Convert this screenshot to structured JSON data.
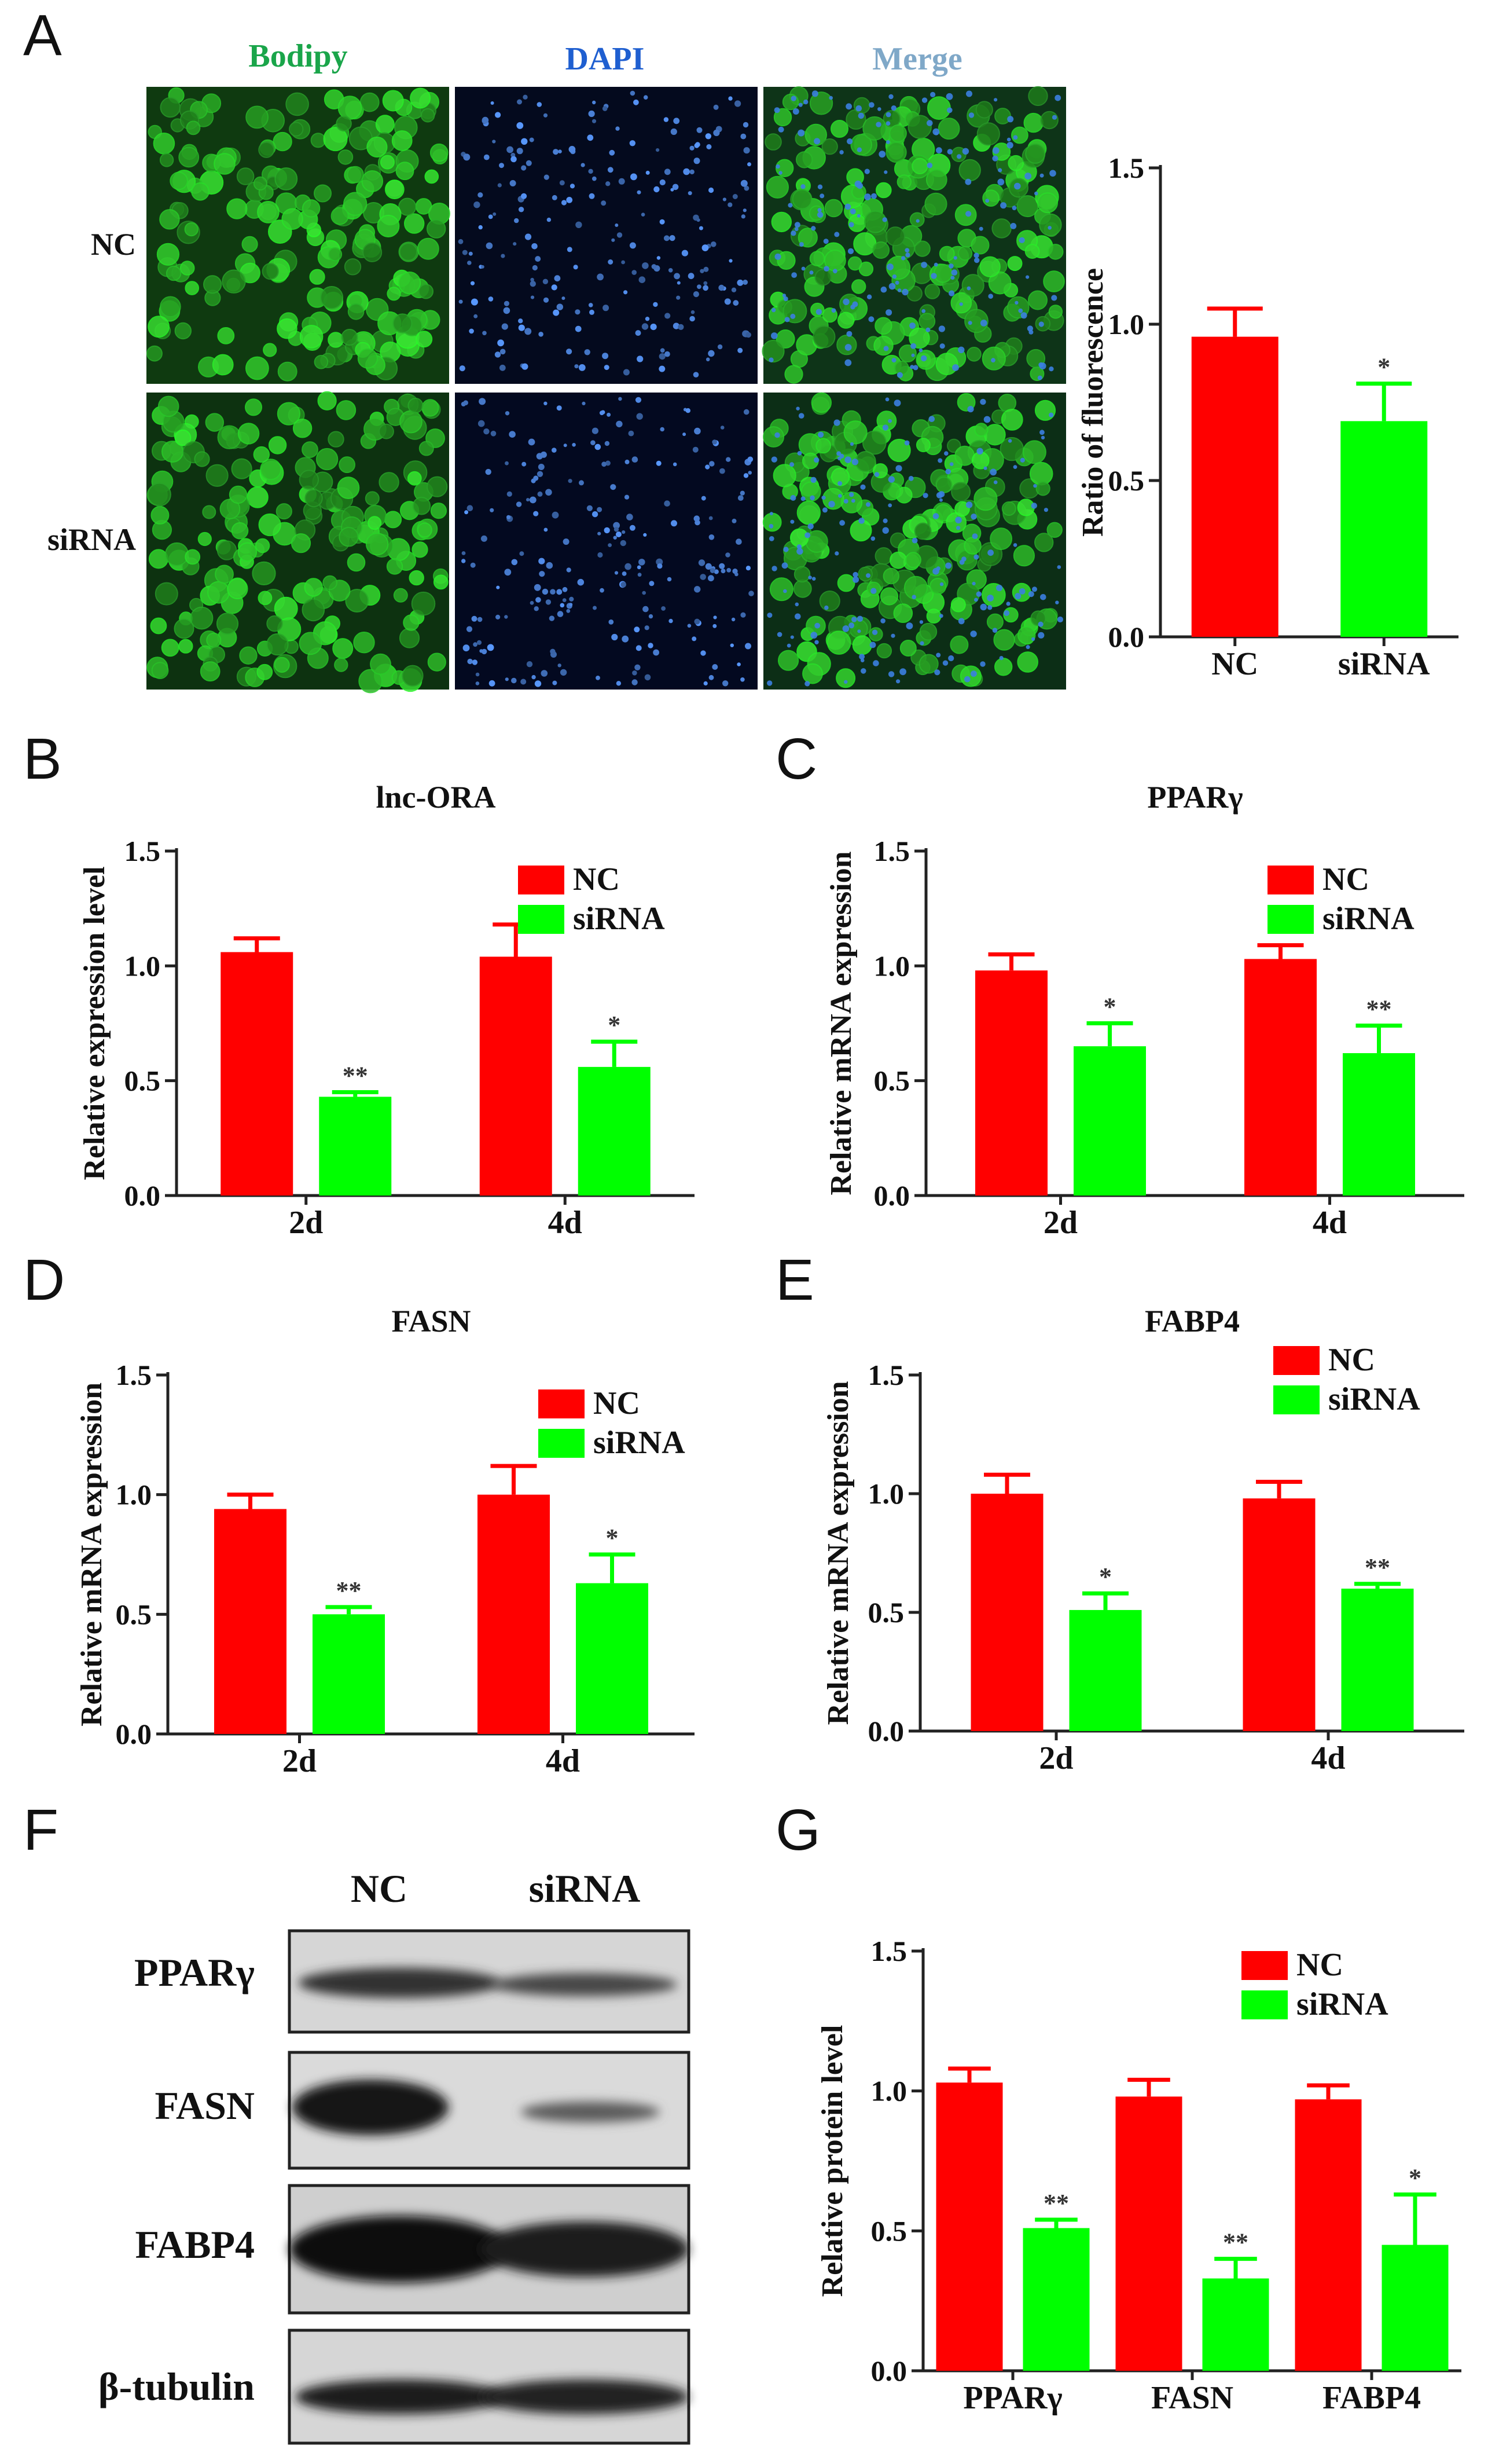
{
  "panel_letters": [
    "A",
    "B",
    "C",
    "D",
    "E",
    "F",
    "G"
  ],
  "microscopy": {
    "columns": [
      "Bodipy",
      "DAPI",
      "Merge"
    ],
    "rows": [
      "NC",
      "siRNA"
    ],
    "column_colors": [
      "#1aa54a",
      "#1f5fd0",
      "#7fa8c8"
    ]
  },
  "western_blot": {
    "lanes": [
      "NC",
      "siRNA"
    ],
    "proteins": [
      "PPARγ",
      "FASN",
      "FABP4",
      "β-tubulin"
    ]
  },
  "colors": {
    "nc": "#ff0000",
    "sirna": "#00ff00",
    "axis": "#222222"
  },
  "chart_data": [
    {
      "id": "A",
      "type": "bar",
      "title": "",
      "ylabel": "Ratio of fluorescence",
      "ylim": [
        0,
        1.5
      ],
      "yticks": [
        "0.0",
        "0.5",
        "1.0",
        "1.5"
      ],
      "categories": [
        "NC",
        "siRNA"
      ],
      "series": [
        {
          "name": "fluorescence",
          "values": [
            0.96,
            0.69
          ],
          "errors": [
            0.09,
            0.12
          ],
          "sig": [
            "",
            "*"
          ]
        }
      ],
      "legend": []
    },
    {
      "id": "B",
      "type": "bar",
      "title": "lnc-ORA",
      "ylabel": "Relative expression level",
      "ylim": [
        0,
        1.5
      ],
      "yticks": [
        "0.0",
        "0.5",
        "1.0",
        "1.5"
      ],
      "categories": [
        "2d",
        "4d"
      ],
      "series": [
        {
          "name": "NC",
          "values": [
            1.06,
            1.04
          ],
          "errors": [
            0.06,
            0.14
          ],
          "sig": [
            "",
            ""
          ]
        },
        {
          "name": "siRNA",
          "values": [
            0.43,
            0.56
          ],
          "errors": [
            0.02,
            0.11
          ],
          "sig": [
            "**",
            "*"
          ]
        }
      ],
      "legend": [
        "NC",
        "siRNA"
      ]
    },
    {
      "id": "C",
      "type": "bar",
      "title": "PPARγ",
      "ylabel": "Relative mRNA expression",
      "ylim": [
        0,
        1.5
      ],
      "yticks": [
        "0.0",
        "0.5",
        "1.0",
        "1.5"
      ],
      "categories": [
        "2d",
        "4d"
      ],
      "series": [
        {
          "name": "NC",
          "values": [
            0.98,
            1.03
          ],
          "errors": [
            0.07,
            0.06
          ],
          "sig": [
            "",
            ""
          ]
        },
        {
          "name": "siRNA",
          "values": [
            0.65,
            0.62
          ],
          "errors": [
            0.1,
            0.12
          ],
          "sig": [
            "*",
            "**"
          ]
        }
      ],
      "legend": [
        "NC",
        "siRNA"
      ]
    },
    {
      "id": "D",
      "type": "bar",
      "title": "FASN",
      "ylabel": "Relative mRNA expression",
      "ylim": [
        0,
        1.5
      ],
      "yticks": [
        "0.0",
        "0.5",
        "1.0",
        "1.5"
      ],
      "categories": [
        "2d",
        "4d"
      ],
      "series": [
        {
          "name": "NC",
          "values": [
            0.94,
            1.0
          ],
          "errors": [
            0.06,
            0.12
          ],
          "sig": [
            "",
            ""
          ]
        },
        {
          "name": "siRNA",
          "values": [
            0.5,
            0.63
          ],
          "errors": [
            0.03,
            0.12
          ],
          "sig": [
            "**",
            "*"
          ]
        }
      ],
      "legend": [
        "NC",
        "siRNA"
      ]
    },
    {
      "id": "E",
      "type": "bar",
      "title": "FABP4",
      "ylabel": "Relative mRNA expression",
      "ylim": [
        0,
        1.5
      ],
      "yticks": [
        "0.0",
        "0.5",
        "1.0",
        "1.5"
      ],
      "categories": [
        "2d",
        "4d"
      ],
      "series": [
        {
          "name": "NC",
          "values": [
            1.0,
            0.98
          ],
          "errors": [
            0.08,
            0.07
          ],
          "sig": [
            "",
            ""
          ]
        },
        {
          "name": "siRNA",
          "values": [
            0.51,
            0.6
          ],
          "errors": [
            0.07,
            0.02
          ],
          "sig": [
            "*",
            "**"
          ]
        }
      ],
      "legend": [
        "NC",
        "siRNA"
      ]
    },
    {
      "id": "G",
      "type": "bar",
      "title": "",
      "ylabel": "Relative protein level",
      "ylim": [
        0,
        1.5
      ],
      "yticks": [
        "0.0",
        "0.5",
        "1.0",
        "1.5"
      ],
      "categories": [
        "PPARγ",
        "FASN",
        "FABP4"
      ],
      "series": [
        {
          "name": "NC",
          "values": [
            1.03,
            0.98,
            0.97
          ],
          "errors": [
            0.05,
            0.06,
            0.05
          ],
          "sig": [
            "",
            "",
            ""
          ]
        },
        {
          "name": "siRNA",
          "values": [
            0.51,
            0.33,
            0.45
          ],
          "errors": [
            0.03,
            0.07,
            0.18
          ],
          "sig": [
            "**",
            "**",
            "*"
          ]
        }
      ],
      "legend": [
        "NC",
        "siRNA"
      ]
    }
  ]
}
